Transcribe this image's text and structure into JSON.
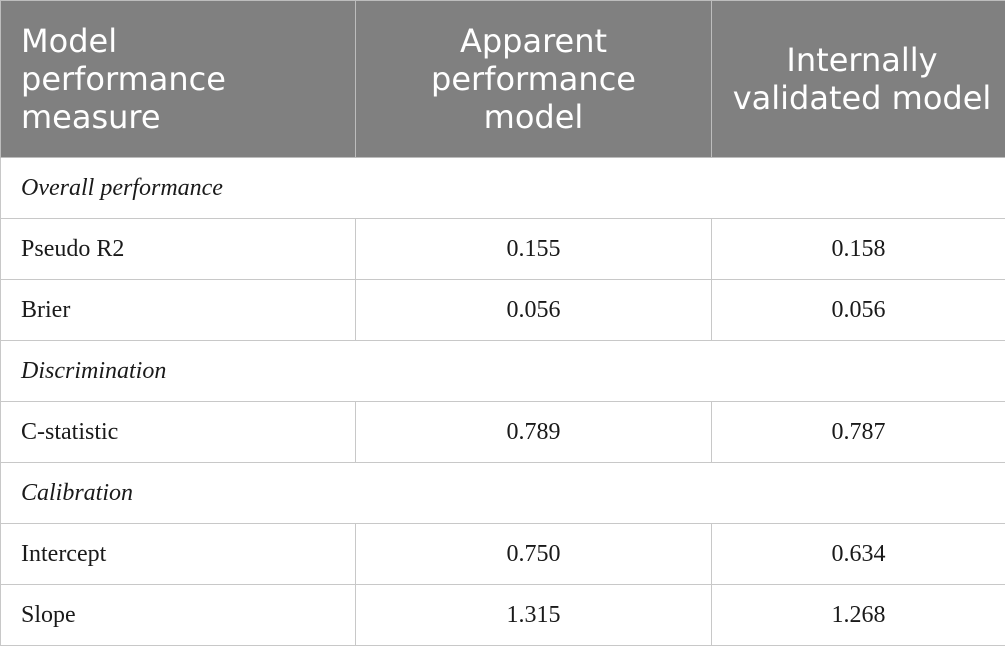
{
  "table": {
    "header": [
      "Model performance measure",
      "Apparent performance model",
      "Internally validated model"
    ],
    "rows": [
      {
        "section": "Overall performance"
      },
      {
        "cells": [
          "Pseudo R2",
          "0.155",
          "0.158"
        ]
      },
      {
        "cells": [
          "Brier",
          "0.056",
          "0.056"
        ]
      },
      {
        "section": "Discrimination"
      },
      {
        "cells": [
          "C-statistic",
          "0.789",
          "0.787"
        ]
      },
      {
        "section": "Calibration"
      },
      {
        "cells": [
          "Intercept",
          "0.750",
          "0.634"
        ]
      },
      {
        "cells": [
          "Slope",
          "1.315",
          "1.268"
        ]
      }
    ]
  }
}
